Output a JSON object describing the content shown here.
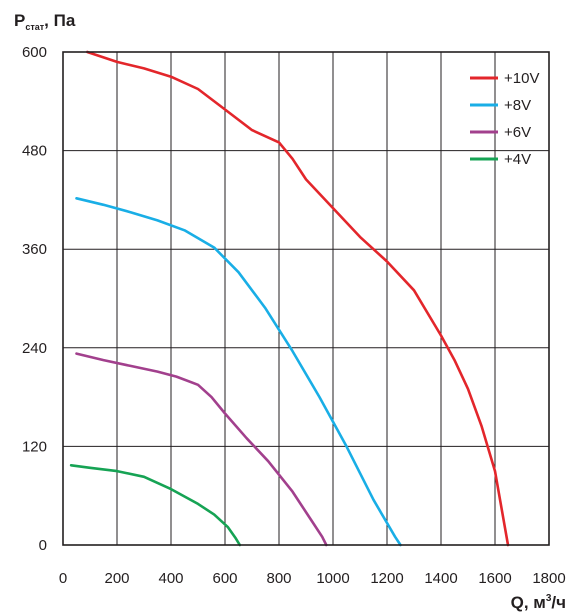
{
  "chart_data": {
    "type": "line",
    "ylabel": {
      "main": "P",
      "sub": "стат",
      "suffix": ", Па"
    },
    "xlabel": {
      "main": "Q, м",
      "sup": "3",
      "suffix": "/ч"
    },
    "xlim": [
      0,
      1800
    ],
    "ylim": [
      0,
      600
    ],
    "x_ticks": [
      0,
      200,
      400,
      600,
      800,
      1000,
      1200,
      1400,
      1600,
      1800
    ],
    "y_ticks": [
      0,
      120,
      240,
      360,
      480,
      600
    ],
    "grid": true,
    "legend_position": "top-right",
    "series": [
      {
        "name": "+10V",
        "color": "#e3262b",
        "points": [
          [
            90,
            600
          ],
          [
            200,
            588
          ],
          [
            300,
            580
          ],
          [
            400,
            570
          ],
          [
            500,
            555
          ],
          [
            600,
            530
          ],
          [
            700,
            505
          ],
          [
            800,
            490
          ],
          [
            850,
            470
          ],
          [
            900,
            445
          ],
          [
            1000,
            410
          ],
          [
            1100,
            375
          ],
          [
            1200,
            345
          ],
          [
            1300,
            310
          ],
          [
            1400,
            255
          ],
          [
            1450,
            225
          ],
          [
            1500,
            190
          ],
          [
            1550,
            145
          ],
          [
            1600,
            90
          ],
          [
            1648,
            0
          ]
        ]
      },
      {
        "name": "+8V",
        "color": "#19aee6",
        "points": [
          [
            50,
            422
          ],
          [
            150,
            414
          ],
          [
            250,
            405
          ],
          [
            350,
            395
          ],
          [
            450,
            383
          ],
          [
            560,
            362
          ],
          [
            650,
            332
          ],
          [
            750,
            288
          ],
          [
            850,
            236
          ],
          [
            950,
            180
          ],
          [
            1050,
            120
          ],
          [
            1150,
            55
          ],
          [
            1230,
            10
          ],
          [
            1250,
            0
          ]
        ]
      },
      {
        "name": "+6V",
        "color": "#a2408d",
        "points": [
          [
            50,
            233
          ],
          [
            150,
            225
          ],
          [
            250,
            218
          ],
          [
            350,
            211
          ],
          [
            420,
            205
          ],
          [
            500,
            195
          ],
          [
            550,
            180
          ],
          [
            600,
            160
          ],
          [
            680,
            130
          ],
          [
            760,
            102
          ],
          [
            850,
            65
          ],
          [
            920,
            30
          ],
          [
            960,
            10
          ],
          [
            975,
            0
          ]
        ]
      },
      {
        "name": "+4V",
        "color": "#16a354",
        "points": [
          [
            30,
            97
          ],
          [
            100,
            94
          ],
          [
            200,
            90
          ],
          [
            300,
            83
          ],
          [
            400,
            68
          ],
          [
            500,
            50
          ],
          [
            560,
            37
          ],
          [
            610,
            22
          ],
          [
            640,
            8
          ],
          [
            655,
            0
          ]
        ]
      }
    ]
  }
}
